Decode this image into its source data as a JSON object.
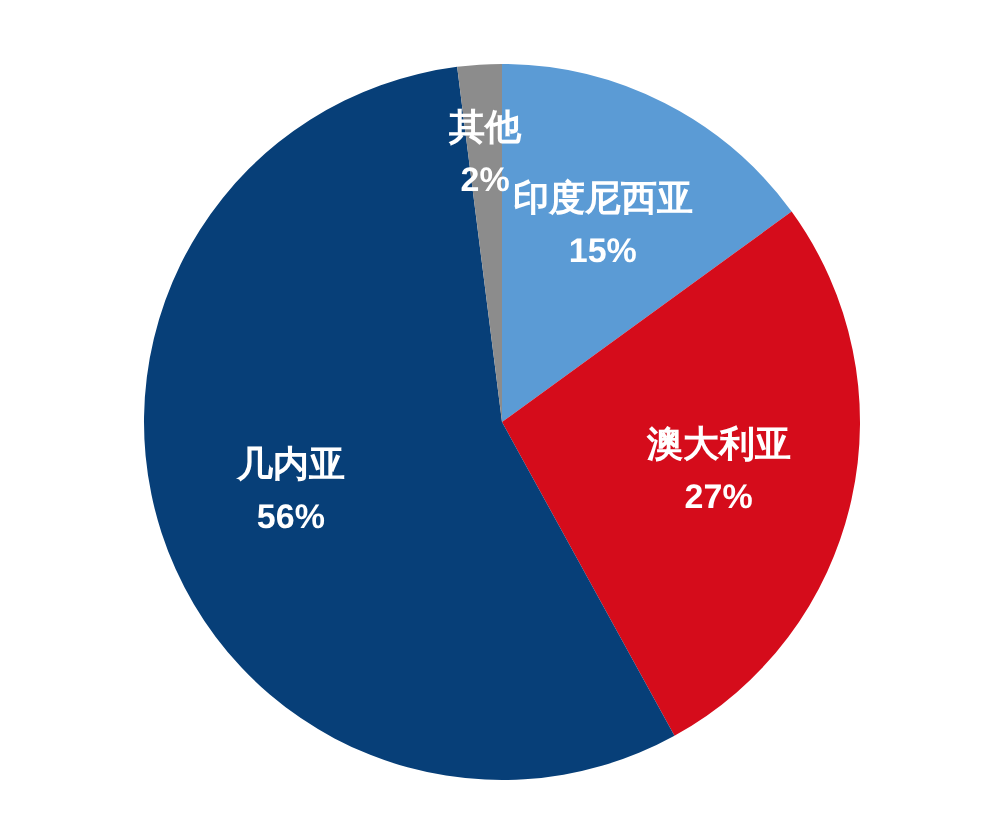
{
  "chart_data": {
    "type": "pie",
    "categories": [
      "印度尼西亚",
      "澳大利亚",
      "几内亚",
      "其他"
    ],
    "values": [
      15,
      27,
      56,
      2
    ],
    "colors": [
      "#5b9bd5",
      "#d50c1b",
      "#073f78",
      "#8c8c8c"
    ],
    "value_labels": [
      "15%",
      "27%",
      "56%",
      "2%"
    ]
  }
}
